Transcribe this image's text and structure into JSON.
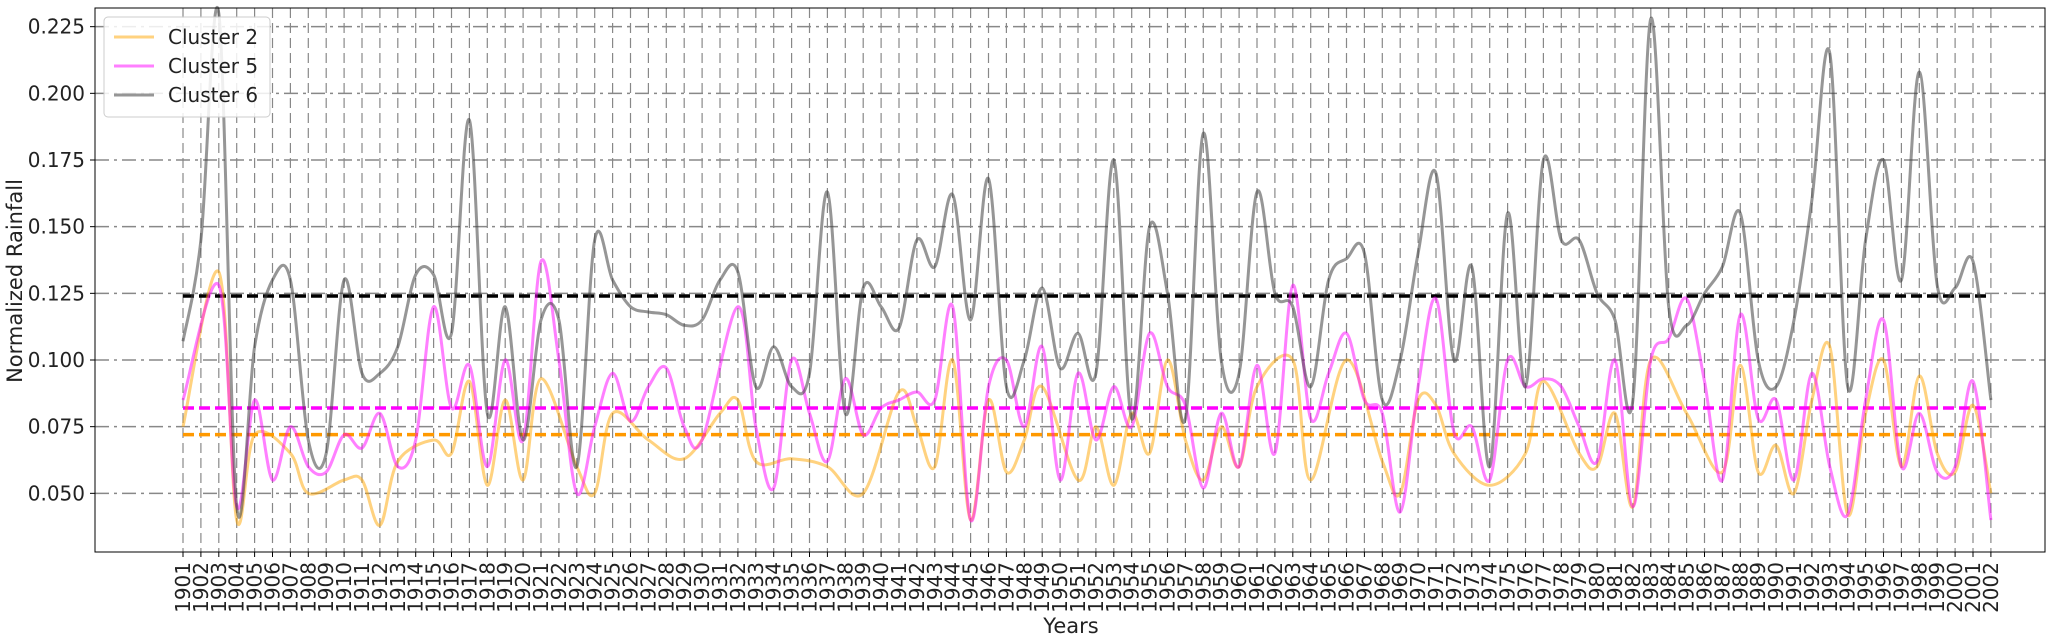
{
  "chart_data": {
    "type": "line",
    "title": "",
    "xlabel": "Years",
    "ylabel": "Normalized Rainfall",
    "x_range": [
      1901,
      2002
    ],
    "ylim": [
      0.028,
      0.232
    ],
    "yticks": [
      0.05,
      0.075,
      0.1,
      0.125,
      0.15,
      0.175,
      0.2,
      0.225
    ],
    "ytick_labels": [
      "0.050",
      "0.075",
      "0.100",
      "0.125",
      "0.150",
      "0.175",
      "0.200",
      "0.225"
    ],
    "grid": "on (dash-dot)",
    "legend_position": "top-left",
    "series": [
      {
        "name": "Cluster 2",
        "color": "#ffa500",
        "opacity": 0.5,
        "mean": 0.072,
        "x": [
          1901,
          1903,
          1904,
          1905,
          1907,
          1908,
          1910,
          1911,
          1912,
          1913,
          1915,
          1916,
          1917,
          1918,
          1919,
          1920,
          1921,
          1923,
          1924,
          1925,
          1927,
          1929,
          1931,
          1932,
          1933,
          1935,
          1937,
          1939,
          1941,
          1942,
          1943,
          1944,
          1945,
          1946,
          1947,
          1948,
          1949,
          1951,
          1952,
          1953,
          1954,
          1955,
          1956,
          1957,
          1958,
          1959,
          1960,
          1961,
          1963,
          1964,
          1966,
          1968,
          1969,
          1970,
          1971,
          1972,
          1974,
          1976,
          1977,
          1979,
          1980,
          1981,
          1982,
          1983,
          1985,
          1987,
          1988,
          1989,
          1990,
          1991,
          1992,
          1993,
          1994,
          1995,
          1996,
          1997,
          1998,
          1999,
          2000,
          2001,
          2002
        ],
        "values": [
          0.075,
          0.133,
          0.04,
          0.072,
          0.065,
          0.05,
          0.055,
          0.055,
          0.038,
          0.062,
          0.07,
          0.065,
          0.092,
          0.053,
          0.085,
          0.055,
          0.093,
          0.06,
          0.05,
          0.08,
          0.07,
          0.063,
          0.08,
          0.085,
          0.062,
          0.063,
          0.06,
          0.05,
          0.088,
          0.075,
          0.06,
          0.1,
          0.04,
          0.085,
          0.058,
          0.07,
          0.09,
          0.055,
          0.075,
          0.053,
          0.08,
          0.065,
          0.1,
          0.07,
          0.055,
          0.075,
          0.06,
          0.09,
          0.1,
          0.055,
          0.1,
          0.062,
          0.05,
          0.085,
          0.083,
          0.065,
          0.053,
          0.065,
          0.092,
          0.065,
          0.06,
          0.08,
          0.045,
          0.1,
          0.08,
          0.058,
          0.098,
          0.058,
          0.068,
          0.05,
          0.085,
          0.105,
          0.042,
          0.08,
          0.1,
          0.06,
          0.094,
          0.065,
          0.058,
          0.083,
          0.05
        ]
      },
      {
        "name": "Cluster 5",
        "color": "#ff00ff",
        "opacity": 0.5,
        "mean": 0.082,
        "x": [
          1901,
          1903,
          1904,
          1905,
          1906,
          1907,
          1908,
          1909,
          1910,
          1911,
          1912,
          1913,
          1914,
          1915,
          1916,
          1917,
          1918,
          1919,
          1920,
          1921,
          1922,
          1923,
          1924,
          1925,
          1926,
          1927,
          1928,
          1929,
          1930,
          1932,
          1933,
          1934,
          1935,
          1936,
          1937,
          1938,
          1939,
          1940,
          1941,
          1942,
          1943,
          1944,
          1945,
          1946,
          1947,
          1948,
          1949,
          1950,
          1951,
          1952,
          1953,
          1954,
          1955,
          1956,
          1957,
          1958,
          1959,
          1960,
          1961,
          1962,
          1963,
          1964,
          1965,
          1966,
          1967,
          1968,
          1969,
          1970,
          1971,
          1972,
          1973,
          1974,
          1975,
          1976,
          1977,
          1978,
          1979,
          1980,
          1981,
          1982,
          1983,
          1984,
          1985,
          1986,
          1987,
          1988,
          1989,
          1990,
          1991,
          1992,
          1993,
          1994,
          1995,
          1996,
          1997,
          1998,
          1999,
          2000,
          2001,
          2002
        ],
        "values": [
          0.085,
          0.128,
          0.045,
          0.085,
          0.055,
          0.075,
          0.06,
          0.058,
          0.072,
          0.067,
          0.08,
          0.06,
          0.07,
          0.12,
          0.082,
          0.098,
          0.06,
          0.1,
          0.07,
          0.137,
          0.1,
          0.05,
          0.075,
          0.095,
          0.077,
          0.09,
          0.097,
          0.075,
          0.07,
          0.12,
          0.075,
          0.052,
          0.1,
          0.08,
          0.062,
          0.093,
          0.072,
          0.082,
          0.085,
          0.088,
          0.085,
          0.12,
          0.04,
          0.09,
          0.1,
          0.075,
          0.105,
          0.055,
          0.095,
          0.07,
          0.09,
          0.075,
          0.11,
          0.09,
          0.083,
          0.052,
          0.08,
          0.06,
          0.098,
          0.065,
          0.128,
          0.078,
          0.095,
          0.11,
          0.085,
          0.08,
          0.043,
          0.09,
          0.123,
          0.073,
          0.075,
          0.055,
          0.1,
          0.09,
          0.093,
          0.09,
          0.075,
          0.062,
          0.1,
          0.045,
          0.1,
          0.108,
          0.123,
          0.092,
          0.055,
          0.117,
          0.078,
          0.085,
          0.055,
          0.095,
          0.06,
          0.042,
          0.085,
          0.115,
          0.06,
          0.08,
          0.058,
          0.06,
          0.092,
          0.04
        ]
      },
      {
        "name": "Cluster 6",
        "color": "#404040",
        "opacity": 0.55,
        "mean": 0.124,
        "x": [
          1901,
          1902,
          1903,
          1904,
          1905,
          1906,
          1907,
          1908,
          1909,
          1910,
          1911,
          1912,
          1913,
          1914,
          1915,
          1916,
          1917,
          1918,
          1919,
          1920,
          1921,
          1922,
          1923,
          1924,
          1925,
          1926,
          1927,
          1928,
          1929,
          1930,
          1931,
          1932,
          1933,
          1934,
          1935,
          1936,
          1937,
          1938,
          1939,
          1940,
          1941,
          1942,
          1943,
          1944,
          1945,
          1946,
          1947,
          1948,
          1949,
          1950,
          1951,
          1952,
          1953,
          1954,
          1955,
          1956,
          1957,
          1958,
          1959,
          1960,
          1961,
          1962,
          1963,
          1964,
          1965,
          1966,
          1967,
          1968,
          1969,
          1970,
          1971,
          1972,
          1973,
          1974,
          1975,
          1976,
          1977,
          1978,
          1979,
          1980,
          1981,
          1982,
          1983,
          1984,
          1985,
          1986,
          1987,
          1988,
          1989,
          1990,
          1991,
          1992,
          1993,
          1994,
          1995,
          1996,
          1997,
          1998,
          1999,
          2000,
          2001,
          2002
        ],
        "values": [
          0.107,
          0.145,
          0.23,
          0.045,
          0.105,
          0.13,
          0.13,
          0.07,
          0.065,
          0.13,
          0.095,
          0.095,
          0.105,
          0.132,
          0.132,
          0.11,
          0.19,
          0.08,
          0.12,
          0.07,
          0.115,
          0.115,
          0.06,
          0.145,
          0.13,
          0.12,
          0.118,
          0.117,
          0.113,
          0.115,
          0.13,
          0.133,
          0.09,
          0.105,
          0.09,
          0.095,
          0.163,
          0.08,
          0.127,
          0.12,
          0.112,
          0.145,
          0.135,
          0.162,
          0.115,
          0.168,
          0.09,
          0.1,
          0.127,
          0.097,
          0.11,
          0.095,
          0.175,
          0.078,
          0.15,
          0.125,
          0.078,
          0.185,
          0.1,
          0.095,
          0.163,
          0.125,
          0.12,
          0.09,
          0.13,
          0.138,
          0.14,
          0.085,
          0.1,
          0.14,
          0.17,
          0.1,
          0.135,
          0.06,
          0.155,
          0.09,
          0.175,
          0.145,
          0.145,
          0.125,
          0.115,
          0.085,
          0.228,
          0.12,
          0.113,
          0.125,
          0.135,
          0.155,
          0.1,
          0.09,
          0.115,
          0.16,
          0.215,
          0.09,
          0.145,
          0.175,
          0.13,
          0.208,
          0.128,
          0.127,
          0.137,
          0.085
        ]
      }
    ],
    "mean_lines": [
      {
        "color": "#000000",
        "value": 0.124
      },
      {
        "color": "#ff00ff",
        "value": 0.082
      },
      {
        "color": "#ff9900",
        "value": 0.072
      }
    ]
  }
}
